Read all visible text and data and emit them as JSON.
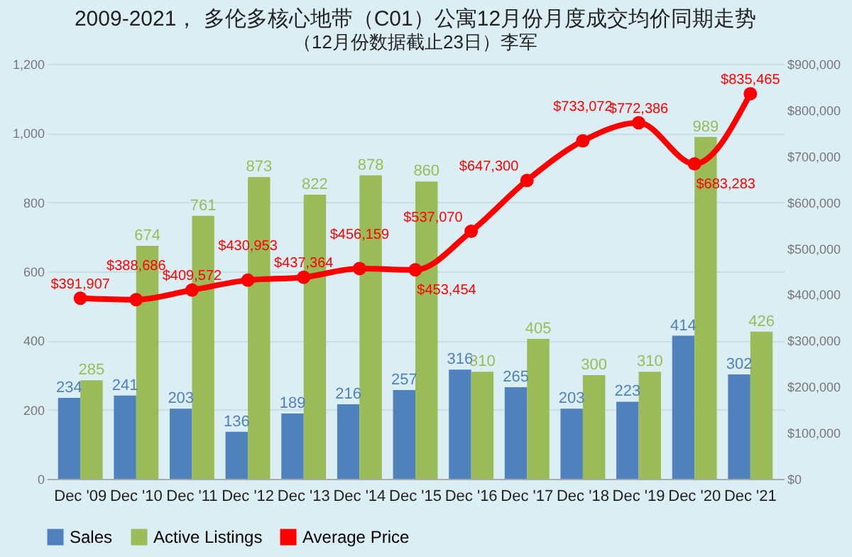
{
  "chart_data": {
    "type": "bar",
    "title": "2009-2021， 多伦多核心地带（C01）公寓12月份月度成交均价同期走势",
    "subtitle": "（12月份数据截止23日）李军",
    "categories": [
      "Dec '09",
      "Dec '10",
      "Dec '11",
      "Dec '12",
      "Dec '13",
      "Dec '14",
      "Dec '15",
      "Dec '16",
      "Dec '17",
      "Dec '18",
      "Dec '19",
      "Dec '20",
      "Dec '21"
    ],
    "series": [
      {
        "name": "Sales",
        "color": "#4f81bd",
        "values": [
          234,
          241,
          203,
          136,
          189,
          216,
          257,
          316,
          265,
          203,
          223,
          414,
          302
        ],
        "value_labels": [
          "234",
          "241",
          "203",
          "136",
          "189",
          "216",
          "257",
          "316",
          "265",
          "203",
          "223",
          "414",
          "302"
        ]
      },
      {
        "name": "Active Listings",
        "color": "#9bbb59",
        "values": [
          285,
          674,
          761,
          873,
          822,
          878,
          860,
          310,
          405,
          300,
          310,
          989,
          426
        ],
        "value_labels": [
          "285",
          "674",
          "761",
          "873",
          "822",
          "878",
          "860",
          "310",
          "405",
          "300",
          "310",
          "989",
          "426"
        ]
      },
      {
        "name": "Average Price",
        "type": "line",
        "axis": "y2",
        "color": "#ff0000",
        "marker": "circle",
        "values": [
          391907,
          388686,
          409572,
          430953,
          437364,
          456159,
          453454,
          537070,
          647300,
          733072,
          772386,
          683283,
          835465
        ],
        "value_labels": [
          "$391,907",
          "$388,686",
          "$409,572",
          "$430,953",
          "$437,364",
          "$456,159",
          "$453,454",
          "$537,070",
          "$647,300",
          "$733,072",
          "$772,386",
          "$683,283",
          "$835,465"
        ]
      }
    ],
    "ylim": [
      0,
      1200
    ],
    "yticks": [
      0,
      200,
      400,
      600,
      800,
      {
        "value": 1000,
        "label": "1,000"
      },
      {
        "value": 1200,
        "label": "1,200"
      }
    ],
    "y2lim": [
      0,
      900000
    ],
    "y2ticks": [
      {
        "value": 0,
        "label": "$0"
      },
      {
        "value": 100000,
        "label": "$100,000"
      },
      {
        "value": 200000,
        "label": "$200,000"
      },
      {
        "value": 300000,
        "label": "$300,000"
      },
      {
        "value": 400000,
        "label": "$400,000"
      },
      {
        "value": 500000,
        "label": "$500,000"
      },
      {
        "value": 600000,
        "label": "$600,000"
      },
      {
        "value": 700000,
        "label": "$700,000"
      },
      {
        "value": 800000,
        "label": "$800,000"
      },
      {
        "value": 900000,
        "label": "$900,000"
      }
    ],
    "grid": "y",
    "legend": "bottom"
  }
}
